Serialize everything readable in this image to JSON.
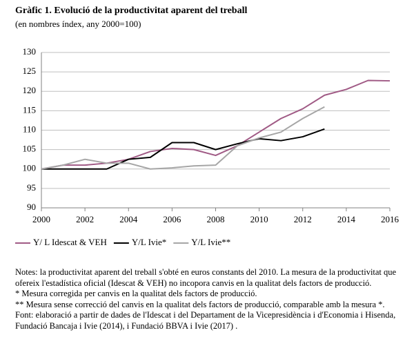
{
  "chart_data": {
    "type": "line",
    "title": "Gràfic 1. Evolució de la productivitat aparent del treball",
    "subtitle": "(en nombres índex, any 2000=100)",
    "x": [
      2000,
      2001,
      2002,
      2003,
      2004,
      2005,
      2006,
      2007,
      2008,
      2009,
      2010,
      2011,
      2012,
      2013,
      2014,
      2015,
      2016
    ],
    "series": [
      {
        "name": "Y/ L Idescat & VEH",
        "color": "#a05a85",
        "values": [
          100,
          101,
          101,
          101.5,
          102.5,
          104.5,
          105.3,
          105,
          103.5,
          106,
          109.5,
          113,
          115.5,
          119,
          120.5,
          122.8,
          122.7
        ]
      },
      {
        "name": "Y/L Ivie*",
        "color": "#000000",
        "values": [
          100,
          100,
          100,
          100,
          102.5,
          103,
          106.8,
          106.8,
          105,
          106.5,
          107.8,
          107.3,
          108.3,
          110.3,
          null,
          null,
          null
        ]
      },
      {
        "name": "Y/L Ivie**",
        "color": "#a6a6a6",
        "values": [
          100,
          101,
          102.5,
          101.5,
          101.5,
          100,
          100.3,
          100.8,
          101,
          106,
          108,
          109.5,
          113,
          116,
          null,
          null,
          null
        ]
      }
    ],
    "xlim": [
      2000,
      2016
    ],
    "xticks": [
      2000,
      2002,
      2004,
      2006,
      2008,
      2010,
      2012,
      2014,
      2016
    ],
    "ylim": [
      90,
      130
    ],
    "yticks": [
      90,
      95,
      100,
      105,
      110,
      115,
      120,
      125,
      130
    ],
    "grid": true,
    "legend": "bottom",
    "notes": [
      "Notes: la productivitat aparent del treball s'obté en euros constants del 2010. La mesura de la productivitat que ofereix l'estadística oficial  (Idescat & VEH)  no incopora canvis en la qualitat dels factors de producció.",
      "* Mesura corregida per canvis en la qualitat dels factors de producció.",
      "** Mesura sense correcció del canvis en la qualitat dels factors de producció, comparable amb la mesura *.",
      "Font: elaboració a partir de dades de l'Idescat i del Departament de la Vicepresidència i d'Economia i Hisenda, Fundació Bancaja i Ivie (2014), i Fundació BBVA i Ivie (2017) ."
    ]
  }
}
